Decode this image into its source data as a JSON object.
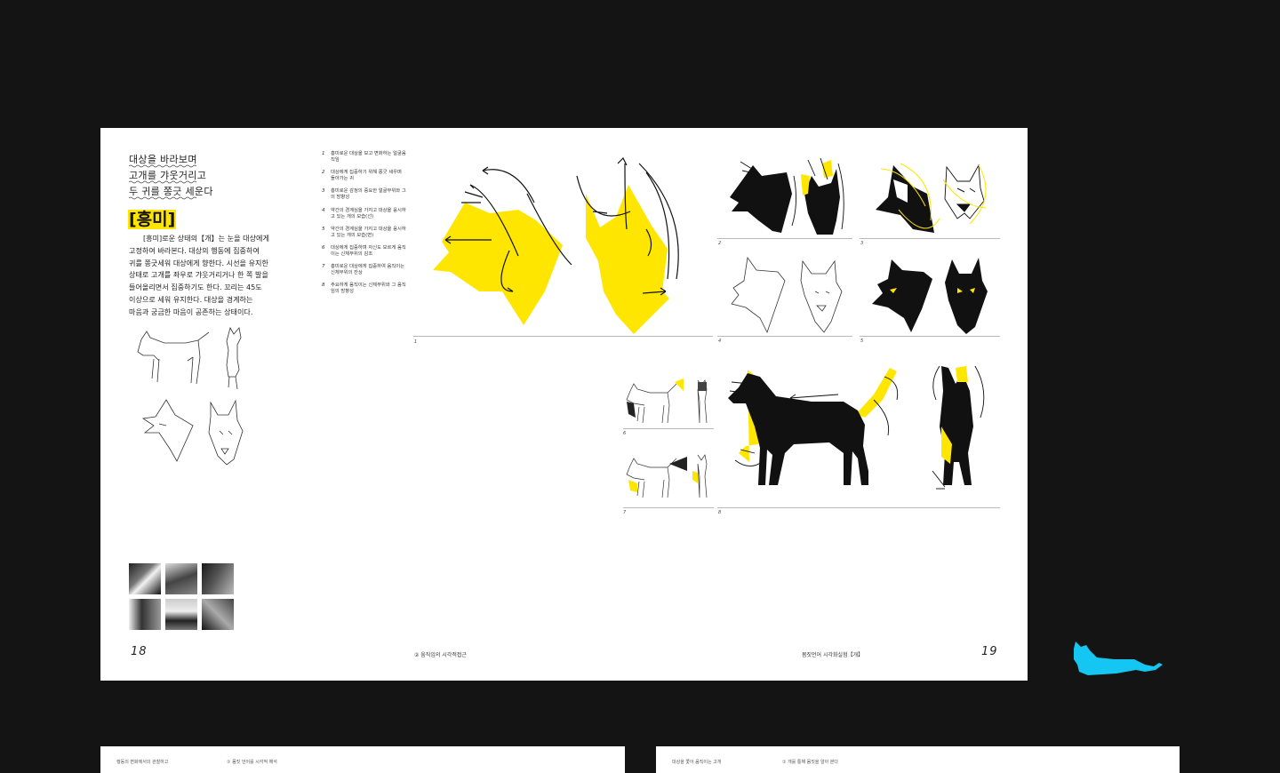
{
  "title_lines": [
    "대상을 바라보며",
    "고개를 갸웃거리고",
    "두 귀를 쫑긋 세운다"
  ],
  "keyword": "[흥미]",
  "body_lines": [
    "[흥미]로운 상태의【개】는 눈을 대상에게",
    "고정하여 바라본다. 대상의 행동에 집중하여",
    "귀를 쫑긋세워 대상에게 향한다. 시선을 유지한",
    "상태로 고개를 좌우로 갸웃거리거나 한 쪽 발을",
    "들어올리면서 집중하기도 한다. 꼬리는 45도",
    "이상으로 세워 유지한다. 대상을 경계하는",
    "마음과 궁금한 마음이 공존하는 상태이다."
  ],
  "captions": [
    {
      "num": "1",
      "text": "흥미로운 대상을 보고 변화하는 얼굴움직임"
    },
    {
      "num": "2",
      "text": "대상에게 집중하기 위해 쫑긋 세우며 돌아가는 귀"
    },
    {
      "num": "3",
      "text": "흥미로운 감정의 중요한 얼굴부위와 그 의 방향성"
    },
    {
      "num": "4",
      "text": "약간의 경계심을 가지고 대상을 응시하고 있는 개의 모습(선)"
    },
    {
      "num": "5",
      "text": "약간의 경계심을 가지고 대상을 응시하고 있는 개의 모습(면)"
    },
    {
      "num": "6",
      "text": "대상에게 집중하며 자신도 모르게 움직이는 신체부위의 감조"
    },
    {
      "num": "7",
      "text": "흥미로운 대상에게 집중하여 움직이는 신체부위의 잔상"
    },
    {
      "num": "8",
      "text": "주요하게 움직이는 신체부위와 그 움직임의 방향성"
    }
  ],
  "figure_numbers": [
    "1",
    "2",
    "3",
    "4",
    "5",
    "6",
    "7",
    "8"
  ],
  "footer": {
    "page_left": "18",
    "page_right": "19",
    "chapter": "② 움직임의 시각적접근",
    "book_title": "몸짓언어 시각화실험【개】"
  },
  "next_spread": {
    "left_a": "행동의 변화에서의 관찰하고",
    "left_b": "① 몸짓 언어를 시각적 해석",
    "right_a": "대상을 쫓아 움직이는 고개",
    "right_b": "① 개를 통해 몸짓을 알아 본다"
  },
  "colors": {
    "accent_yellow": "#ffe600",
    "background": "#141414",
    "page": "#ffffff",
    "logo_cyan": "#15c6f2"
  },
  "icons": {
    "logo": "lying-cat-icon"
  }
}
